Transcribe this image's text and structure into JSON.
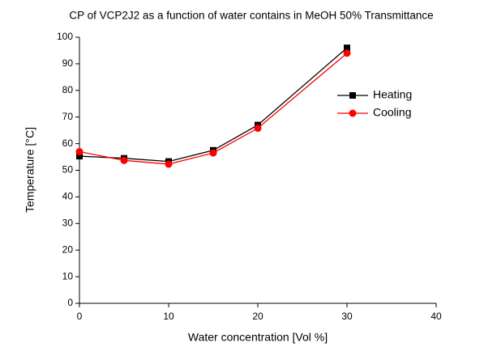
{
  "chart_data": {
    "type": "line",
    "title": "CP of VCP2J2 as a function of water contains in MeOH 50% Transmittance",
    "x_label": "Water concentration [Vol %]",
    "y_label": "Temperature [°C]",
    "x": [
      0,
      5,
      10,
      15,
      20,
      30
    ],
    "series": [
      {
        "name": "Heating",
        "color": "#000000",
        "marker": "square",
        "values": [
          55.3,
          54.5,
          53.3,
          57.5,
          67,
          96
        ]
      },
      {
        "name": "Cooling",
        "color": "#ff0000",
        "marker": "circle",
        "values": [
          57,
          53.7,
          52.3,
          56.5,
          65.8,
          94
        ]
      }
    ],
    "xlim": [
      0,
      40
    ],
    "xticks": [
      0,
      10,
      20,
      30,
      40
    ],
    "ylim": [
      0,
      100
    ],
    "yticks": [
      0,
      10,
      20,
      30,
      40,
      50,
      60,
      70,
      80,
      90,
      100
    ],
    "legend": "upper right",
    "grid": false
  }
}
